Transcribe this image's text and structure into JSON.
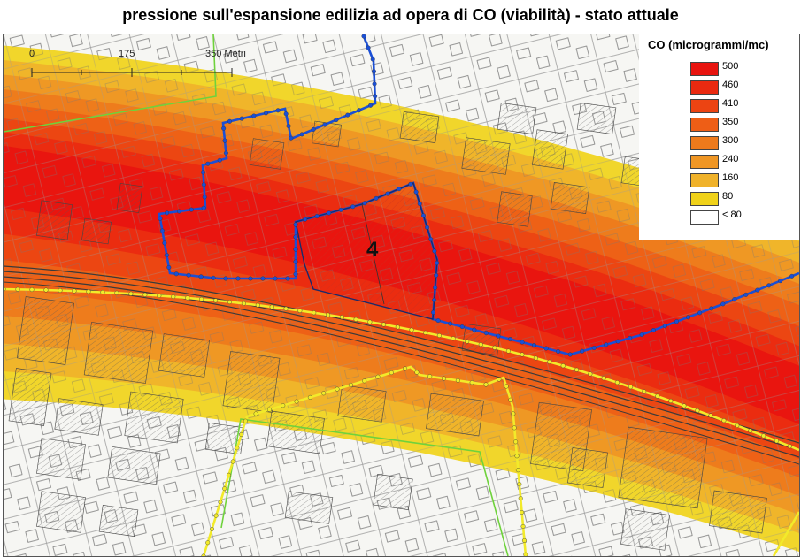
{
  "title": "pressione sull'espansione edilizia ad opera di CO (viabilità) - stato attuale",
  "scale_bar": {
    "ticks": [
      "0",
      "175",
      "350 Metri"
    ]
  },
  "area_label": "4",
  "legend": {
    "title": "CO (microgrammi/mc)",
    "items": [
      {
        "label": "500",
        "color": "#e8140f"
      },
      {
        "label": "460",
        "color": "#ea2a10"
      },
      {
        "label": "410",
        "color": "#ec4412"
      },
      {
        "label": "350",
        "color": "#ee5e16"
      },
      {
        "label": "300",
        "color": "#ee7a1c"
      },
      {
        "label": "240",
        "color": "#ef9624"
      },
      {
        "label": "160",
        "color": "#f0b22a"
      },
      {
        "label": "80",
        "color": "#f0d21a"
      },
      {
        "label": "< 80",
        "color": "#ffffff"
      }
    ]
  },
  "colors": {
    "boundary_blue": "#1a4fd6",
    "boundary_yellow": "#f2ea2a",
    "boundary_green": "#6fd23c",
    "road_dark": "#3a3a3a"
  }
}
